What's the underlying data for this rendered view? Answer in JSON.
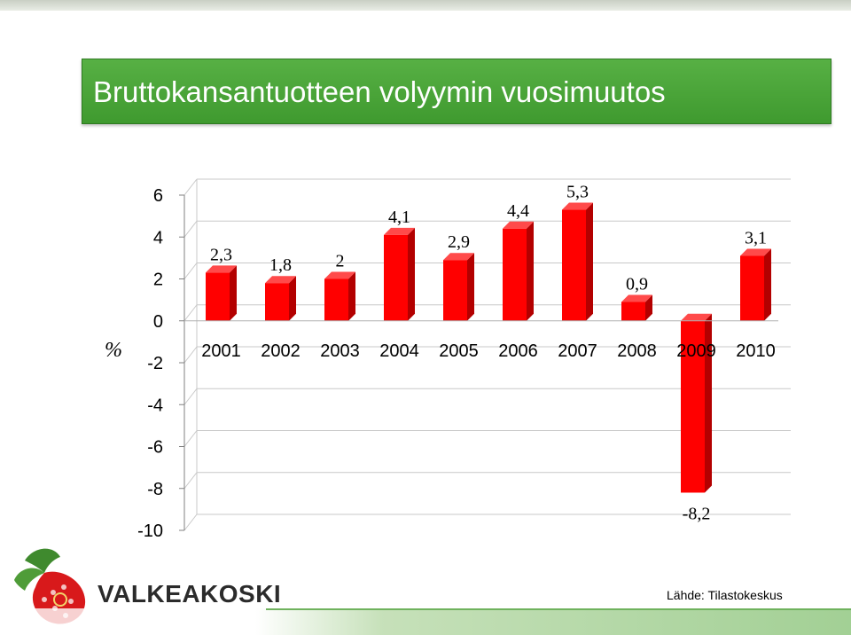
{
  "slide": {
    "title": "Bruttokansantuotteen volyymin vuosimuutos",
    "source": "Lähde: Tilastokeskus",
    "logo_text": "VALKEAKOSKI"
  },
  "colors": {
    "title_bg": "#4aa63a",
    "bar_front": "#ff0000",
    "bar_side": "#b30000",
    "bar_top": "#ff4a4a"
  },
  "chart_data": {
    "type": "bar",
    "title": "",
    "ylabel": "%",
    "xlabel": "",
    "categories": [
      "2001",
      "2002",
      "2003",
      "2004",
      "2005",
      "2006",
      "2007",
      "2008",
      "2009",
      "2010"
    ],
    "values": [
      2.3,
      1.8,
      2,
      4.1,
      2.9,
      4.4,
      5.3,
      0.9,
      -8.2,
      3.1
    ],
    "data_labels": [
      "2,3",
      "1,8",
      "2",
      "4,1",
      "2,9",
      "4,4",
      "5,3",
      "0,9",
      "-8,2",
      "3,1"
    ],
    "yticks": [
      "6",
      "4",
      "2",
      "0",
      "-2",
      "-4",
      "-6",
      "-8",
      "-10"
    ],
    "ytick_values": [
      6,
      4,
      2,
      0,
      -2,
      -4,
      -6,
      -8,
      -10
    ],
    "ylim": [
      -10,
      6
    ],
    "grid": true,
    "legend": "none",
    "style": "3d"
  }
}
